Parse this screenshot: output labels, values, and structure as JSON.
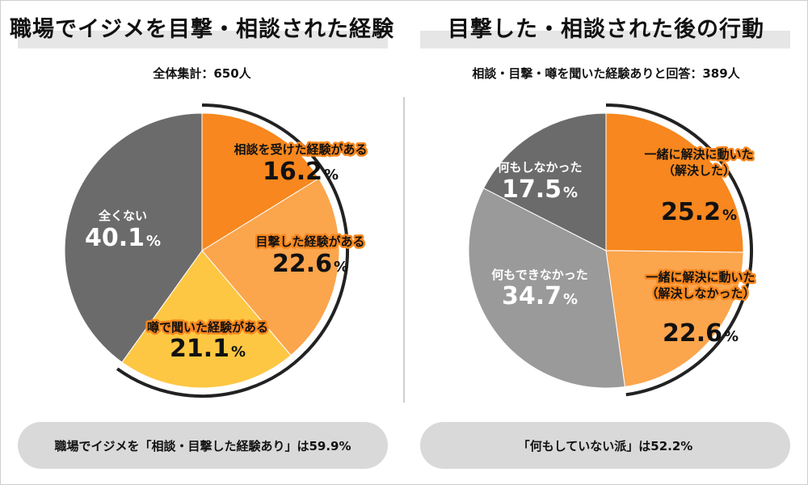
{
  "chart_data": [
    {
      "type": "pie",
      "title": "職場でイジメを目撃・相談された経験",
      "subtitle": "全体集計：650人",
      "slices": [
        {
          "label": "相談を受けた経験がある",
          "value": 16.2,
          "value_text": "16.2",
          "color": "#f7871e",
          "highlight": true
        },
        {
          "label": "目撃した経験がある",
          "value": 22.6,
          "value_text": "22.6",
          "color": "#fba54d",
          "highlight": true
        },
        {
          "label": "噂で聞いた経験がある",
          "value": 21.1,
          "value_text": "21.1",
          "color": "#fdc743",
          "highlight": true
        },
        {
          "label": "全くない",
          "value": 40.1,
          "value_text": "40.1",
          "color": "#6b6b6b",
          "highlight": false
        }
      ],
      "percent_sign": "%",
      "summary": "職場でイジメを「相談・目撃した経験あり」は59.9%"
    },
    {
      "type": "pie",
      "title": "目撃した・相談された後の行動",
      "subtitle": "相談・目撃・噂を聞いた経験ありと回答：389人",
      "slices": [
        {
          "label": "一緒に解決に動いた（解決した）",
          "label_lines": [
            "一緒に解決に動いた",
            "（解決した）"
          ],
          "value": 25.2,
          "value_text": "25.2",
          "color": "#f7871e",
          "highlight": true
        },
        {
          "label": "一緒に解決に動いた（解決しなかった）",
          "label_lines": [
            "一緒に解決に動いた",
            "（解決しなかった）"
          ],
          "value": 22.6,
          "value_text": "22.6",
          "color": "#fba54d",
          "highlight": true
        },
        {
          "label": "何もできなかった",
          "label_lines": [
            "何もできなかった"
          ],
          "value": 34.7,
          "value_text": "34.7",
          "color": "#9a9a9a",
          "highlight": false
        },
        {
          "label": "何もしなかった",
          "label_lines": [
            "何もしなかった"
          ],
          "value": 17.5,
          "value_text": "17.5",
          "color": "#6b6b6b",
          "highlight": false
        }
      ],
      "percent_sign": "%",
      "summary": "「何もしていない派」は52.2%"
    }
  ]
}
